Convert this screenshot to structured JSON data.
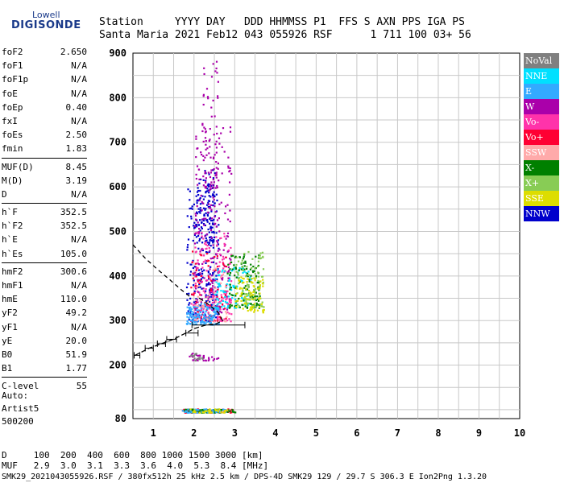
{
  "logo": {
    "top": "Lowell",
    "main": "DIGISONDE"
  },
  "header": {
    "line1": "Station     YYYY DAY   DDD HHMMSS P1  FFS S AXN PPS IGA PS",
    "line2": "Santa Maria 2021 Feb12 043 055926 RSF      1 711 100 03+ 56"
  },
  "params": [
    {
      "group": [
        {
          "name": "foF2",
          "value": "2.650"
        },
        {
          "name": "foF1",
          "value": "N/A"
        },
        {
          "name": "foF1p",
          "value": "N/A"
        },
        {
          "name": "foE",
          "value": "N/A"
        },
        {
          "name": "foEp",
          "value": "0.40"
        },
        {
          "name": "fxI",
          "value": "N/A"
        },
        {
          "name": "foEs",
          "value": "2.50"
        },
        {
          "name": "fmin",
          "value": "1.83"
        }
      ]
    },
    {
      "group": [
        {
          "name": "MUF(D)",
          "value": "8.45"
        },
        {
          "name": "M(D)",
          "value": "3.19"
        },
        {
          "name": "D",
          "value": "N/A"
        }
      ]
    },
    {
      "group": [
        {
          "name": "h`F",
          "value": "352.5"
        },
        {
          "name": "h`F2",
          "value": "352.5"
        },
        {
          "name": "h`E",
          "value": "N/A"
        },
        {
          "name": "h`Es",
          "value": "105.0"
        }
      ]
    },
    {
      "group": [
        {
          "name": "hmF2",
          "value": "300.6"
        },
        {
          "name": "hmF1",
          "value": "N/A"
        },
        {
          "name": "hmE",
          "value": "110.0"
        },
        {
          "name": "yF2",
          "value": "49.2"
        },
        {
          "name": "yF1",
          "value": "N/A"
        },
        {
          "name": "yE",
          "value": "20.0"
        },
        {
          "name": "B0",
          "value": "51.9"
        },
        {
          "name": "B1",
          "value": "1.77"
        }
      ]
    },
    {
      "group": [
        {
          "name": "C-level",
          "value": "55"
        }
      ]
    }
  ],
  "auto": {
    "line1": "Auto:",
    "line2": "Artist5",
    "line3": "500200"
  },
  "footer": {
    "d_line": "D     100  200  400  600  800 1000 1500 3000 [km]",
    "muf_line": "MUF   2.9  3.0  3.1  3.3  3.6  4.0  5.3  8.4 [MHz]",
    "file_line": "SMK29_2021043055926.RSF / 380fx512h 25 kHz 2.5 km / DPS-4D SMK29 129 / 29.7 S 306.3 E Ion2Png 1.3.20"
  },
  "legend": [
    {
      "label": "NoVal",
      "color": "#808080"
    },
    {
      "label": "NNE",
      "color": "#00e0ff"
    },
    {
      "label": "E",
      "color": "#33aaff"
    },
    {
      "label": "W",
      "color": "#aa00aa"
    },
    {
      "label": "Vo-",
      "color": "#ff33aa"
    },
    {
      "label": "Vo+",
      "color": "#ff0033"
    },
    {
      "label": "SSW",
      "color": "#ffaaaa"
    },
    {
      "label": "X-",
      "color": "#008000"
    },
    {
      "label": "X+",
      "color": "#88cc55"
    },
    {
      "label": "SSE",
      "color": "#dddd00"
    },
    {
      "label": "NNW",
      "color": "#0000cc"
    }
  ],
  "chart_data": {
    "type": "scatter",
    "xlim": [
      0.5,
      10
    ],
    "ylim": [
      80,
      900
    ],
    "xticks": [
      1,
      2,
      3,
      4,
      5,
      6,
      7,
      8,
      9,
      10
    ],
    "yticks": [
      80,
      200,
      300,
      400,
      500,
      600,
      700,
      800,
      900
    ],
    "grid": true,
    "clusters": [
      {
        "series": "NNW",
        "x": [
          1.8,
          2.6
        ],
        "y": [
          300,
          600
        ],
        "n": 260
      },
      {
        "series": "NNW",
        "x": [
          2.0,
          2.5
        ],
        "y": [
          480,
          640
        ],
        "n": 90
      },
      {
        "series": "W",
        "x": [
          2.0,
          2.9
        ],
        "y": [
          320,
          760
        ],
        "n": 240
      },
      {
        "series": "W",
        "x": [
          2.2,
          2.6
        ],
        "y": [
          600,
          890
        ],
        "n": 60
      },
      {
        "series": "Vo-",
        "x": [
          1.9,
          2.9
        ],
        "y": [
          300,
          500
        ],
        "n": 160
      },
      {
        "series": "Vo+",
        "x": [
          1.9,
          2.8
        ],
        "y": [
          300,
          460
        ],
        "n": 80
      },
      {
        "series": "E",
        "x": [
          1.8,
          2.6
        ],
        "y": [
          292,
          340
        ],
        "n": 140
      },
      {
        "series": "NNE",
        "x": [
          2.5,
          3.4
        ],
        "y": [
          330,
          420
        ],
        "n": 90
      },
      {
        "series": "X-",
        "x": [
          2.8,
          3.6
        ],
        "y": [
          330,
          450
        ],
        "n": 120
      },
      {
        "series": "X+",
        "x": [
          3.0,
          3.7
        ],
        "y": [
          330,
          460
        ],
        "n": 90
      },
      {
        "series": "SSE",
        "x": [
          3.0,
          3.7
        ],
        "y": [
          320,
          400
        ],
        "n": 80
      },
      {
        "series": "SSW",
        "x": [
          2.0,
          2.8
        ],
        "y": [
          300,
          420
        ],
        "n": 40
      },
      {
        "series": "W",
        "x": [
          1.8,
          2.6
        ],
        "y": [
          212,
          228
        ],
        "n": 30
      },
      {
        "series": "NoVal",
        "x": [
          1.8,
          2.2
        ],
        "y": [
          212,
          228
        ],
        "n": 15
      },
      {
        "series": "Vo+",
        "x": [
          1.7,
          3.0
        ],
        "y": [
          95,
          103
        ],
        "n": 70
      },
      {
        "series": "X-",
        "x": [
          1.7,
          3.0
        ],
        "y": [
          95,
          103
        ],
        "n": 70
      },
      {
        "series": "E",
        "x": [
          1.7,
          2.8
        ],
        "y": [
          95,
          103
        ],
        "n": 50
      },
      {
        "series": "SSE",
        "x": [
          1.8,
          2.8
        ],
        "y": [
          95,
          103
        ],
        "n": 30
      }
    ],
    "profile": {
      "x": [
        0.55,
        0.9,
        1.2,
        1.5,
        1.8,
        2.0,
        2.3,
        2.55,
        2.7,
        2.6,
        2.3,
        2.1
      ],
      "y": [
        222,
        238,
        248,
        258,
        272,
        282,
        290,
        293,
        300,
        318,
        340,
        352
      ]
    },
    "virtual_trace": {
      "x": [
        0.5,
        0.8,
        1.1,
        1.4,
        1.7,
        1.95
      ],
      "y": [
        470,
        440,
        415,
        392,
        368,
        350
      ]
    },
    "error_bars": [
      {
        "x": 0.6,
        "y": 222,
        "half_width": 0.07
      },
      {
        "x": 0.9,
        "y": 238,
        "half_width": 0.1
      },
      {
        "x": 1.2,
        "y": 248,
        "half_width": 0.1
      },
      {
        "x": 1.45,
        "y": 258,
        "half_width": 0.12
      },
      {
        "x": 1.95,
        "y": 272,
        "half_width": 0.15
      },
      {
        "x": 2.6,
        "y": 290,
        "half_width": 0.65
      }
    ]
  }
}
